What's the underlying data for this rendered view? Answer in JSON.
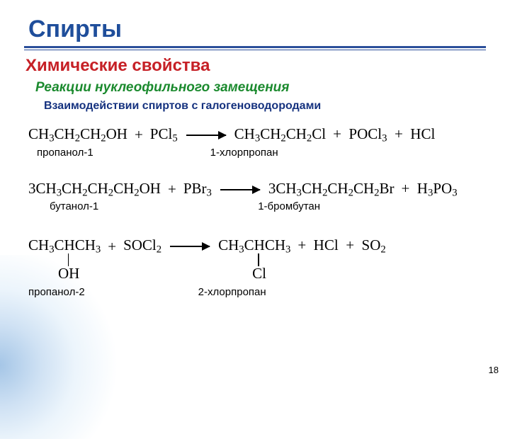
{
  "title": "Спирты",
  "subtitle": "Химические свойства",
  "sectionTitle": "Реакции нуклеофильного замещения",
  "subsectionTitle": "Взаимодействии спиртов с галогеноводородами",
  "pageNumber": "18",
  "colors": {
    "title": "#1f4e9b",
    "subtitle": "#c62026",
    "section": "#1b8a2e",
    "subsection": "#15327f",
    "rule": "#2b4f9a"
  },
  "reactions": [
    {
      "left": "CH<sub>3</sub>CH<sub>2</sub>CH<sub>2</sub>OH",
      "leftLabel": "пропанол-1",
      "reagent": "PCl<sub>5</sub>",
      "right": "CH<sub>3</sub>CH<sub>2</sub>CH<sub>2</sub>Cl",
      "rightLabel": "1-хлорпропан",
      "tail": "+&nbsp;&nbsp;POCl<sub>3</sub>&nbsp;&nbsp;+&nbsp;&nbsp;HCl",
      "labelGap": 165
    },
    {
      "left": "3CH<sub>3</sub>CH<sub>2</sub>CH<sub>2</sub>CH<sub>2</sub>OH",
      "leftLabel": "бутанол-1",
      "reagent": "PBr<sub>3</sub>",
      "right": "3CH<sub>3</sub>CH<sub>2</sub>CH<sub>2</sub>CH<sub>2</sub>Br",
      "rightLabel": "1-бромбутан",
      "tail": "+&nbsp;&nbsp;H<sub>3</sub>PO<sub>3</sub>",
      "labelGap": 225
    }
  ],
  "reaction3": {
    "leftMain": "CH<sub>3</sub>CHCH<sub>3</sub>",
    "leftPendant": "OH",
    "leftLabel": "пропанол-2",
    "reagent": "SOCl<sub>2</sub>",
    "rightMain": "CH<sub>3</sub>CHCH<sub>3</sub>",
    "rightPendant": "Cl",
    "rightLabel": "2-хлорпропан",
    "tail": "+&nbsp;&nbsp;HCl&nbsp;&nbsp;+&nbsp;&nbsp;SO<sub>2</sub>"
  }
}
